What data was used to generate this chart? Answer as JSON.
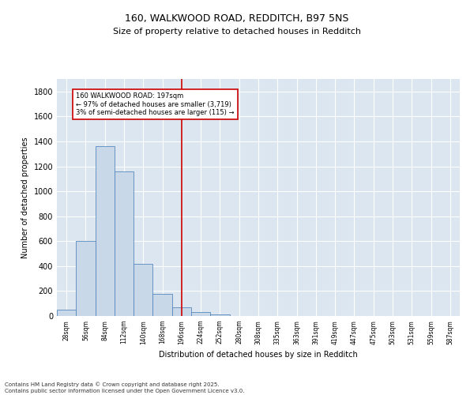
{
  "title1": "160, WALKWOOD ROAD, REDDITCH, B97 5NS",
  "title2": "Size of property relative to detached houses in Redditch",
  "xlabel": "Distribution of detached houses by size in Redditch",
  "ylabel": "Number of detached properties",
  "categories": [
    "28sqm",
    "56sqm",
    "84sqm",
    "112sqm",
    "140sqm",
    "168sqm",
    "196sqm",
    "224sqm",
    "252sqm",
    "280sqm",
    "308sqm",
    "335sqm",
    "363sqm",
    "391sqm",
    "419sqm",
    "447sqm",
    "475sqm",
    "503sqm",
    "531sqm",
    "559sqm",
    "587sqm"
  ],
  "values": [
    50,
    600,
    1360,
    1160,
    415,
    180,
    70,
    30,
    10,
    0,
    0,
    0,
    0,
    0,
    0,
    0,
    0,
    0,
    0,
    0,
    0
  ],
  "bar_color": "#c8d8e8",
  "bar_edge_color": "#5588bb",
  "background_color": "#dce6f0",
  "grid_color": "#ffffff",
  "vline_x_index": 6,
  "vline_color": "#cc0000",
  "annotation_text": "160 WALKWOOD ROAD: 197sqm\n← 97% of detached houses are smaller (3,719)\n3% of semi-detached houses are larger (115) →",
  "annotation_box_color": "#ffffff",
  "annotation_box_edge": "#cc0000",
  "footer_text": "Contains HM Land Registry data © Crown copyright and database right 2025.\nContains public sector information licensed under the Open Government Licence v3.0.",
  "ylim": [
    0,
    1900
  ],
  "yticks": [
    0,
    200,
    400,
    600,
    800,
    1000,
    1200,
    1400,
    1600,
    1800
  ],
  "title1_fontsize": 9,
  "title2_fontsize": 8,
  "ylabel_fontsize": 7,
  "xlabel_fontsize": 7,
  "ytick_fontsize": 7,
  "xtick_fontsize": 5.5,
  "annot_fontsize": 6,
  "footer_fontsize": 5
}
